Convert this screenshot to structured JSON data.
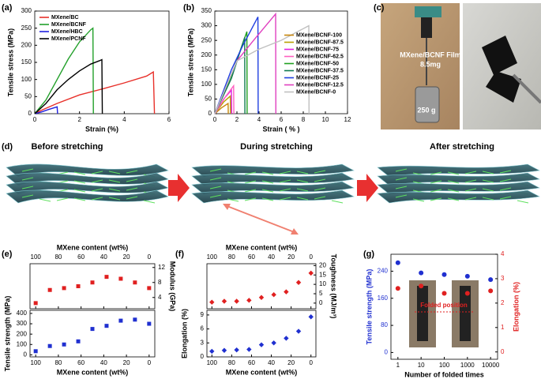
{
  "panel_labels": [
    "(a)",
    "(b)",
    "(c)",
    "(d)",
    "(e)",
    "(f)",
    "(g)"
  ],
  "photo": {
    "film_label": "MXene/BCNF Film",
    "mass": "8.5mg",
    "weight": "250 g"
  },
  "stretching": [
    "Before stretching",
    "During stretching",
    "After stretching"
  ],
  "inset_label": "Folded position",
  "chart_data": [
    {
      "type": "line",
      "xlabel": "Strain (%)",
      "ylabel": "Tensile stress (MPa)",
      "xlim": [
        0,
        6
      ],
      "xticks": [
        0,
        2,
        4,
        6
      ],
      "ylim": [
        0,
        300
      ],
      "yticks": [
        0,
        50,
        100,
        150,
        200,
        250,
        300
      ],
      "legend": "upper left",
      "series": [
        {
          "name": "MXene/BC",
          "color": "#e8302a",
          "x": [
            0,
            0.3,
            1,
            2,
            3,
            4,
            5,
            5.3,
            5.35
          ],
          "values": [
            0,
            10,
            30,
            55,
            72,
            90,
            110,
            122,
            0
          ]
        },
        {
          "name": "MXene/BCNF",
          "color": "#22a02a",
          "x": [
            0,
            0.5,
            1,
            1.5,
            2,
            2.5,
            2.6,
            2.62
          ],
          "values": [
            0,
            40,
            100,
            160,
            210,
            245,
            250,
            0
          ]
        },
        {
          "name": "MXene/HBC",
          "color": "#2020e0",
          "x": [
            0,
            0.3,
            0.6,
            0.9,
            1.0,
            1.02
          ],
          "values": [
            0,
            5,
            12,
            18,
            20,
            0
          ]
        },
        {
          "name": "MXene/PCNF",
          "color": "#000000",
          "x": [
            0,
            0.5,
            1,
            1.5,
            2,
            2.5,
            2.9,
            3.0,
            3.02
          ],
          "values": [
            0,
            30,
            70,
            100,
            125,
            145,
            155,
            158,
            0
          ]
        }
      ]
    },
    {
      "type": "line",
      "xlabel": "Strain ( % )",
      "ylabel": "Tensile stress (MPa)",
      "xlim": [
        0,
        12
      ],
      "xticks": [
        0,
        2,
        4,
        6,
        8,
        10,
        12
      ],
      "ylim": [
        0,
        350
      ],
      "yticks": [
        0,
        50,
        100,
        150,
        200,
        250,
        300,
        350
      ],
      "legend": "center right",
      "series": [
        {
          "name": "MXene/BCNF-100",
          "color": "#c8860a",
          "x": [
            0,
            0.6,
            1.2,
            1.22
          ],
          "values": [
            0,
            20,
            35,
            0
          ]
        },
        {
          "name": "MXene/BCNF-87.5",
          "color": "#b8a000",
          "x": [
            0,
            0.8,
            1.4,
            1.42
          ],
          "values": [
            0,
            40,
            60,
            0
          ]
        },
        {
          "name": "MXene/BCNF-75",
          "color": "#e020e0",
          "x": [
            0,
            0.8,
            1.5,
            1.52
          ],
          "values": [
            0,
            50,
            80,
            0
          ]
        },
        {
          "name": "MXene/BCNF-62.5",
          "color": "#ff60c0",
          "x": [
            0,
            1,
            1.7,
            1.72
          ],
          "values": [
            0,
            60,
            95,
            0
          ]
        },
        {
          "name": "MXene/BCNF-50",
          "color": "#20a020",
          "x": [
            0,
            1.5,
            2.9,
            2.92
          ],
          "values": [
            0,
            130,
            280,
            0
          ]
        },
        {
          "name": "MXene/BCNF-37.5",
          "color": "#107a50",
          "x": [
            0,
            1.5,
            2.7,
            2.72
          ],
          "values": [
            0,
            120,
            260,
            0
          ]
        },
        {
          "name": "MXene/BCNF-25",
          "color": "#2040e0",
          "x": [
            0,
            1.5,
            2.5,
            3.9,
            3.92
          ],
          "values": [
            0,
            150,
            230,
            330,
            0
          ]
        },
        {
          "name": "MXene/BCNF-12.5",
          "color": "#e040c0",
          "x": [
            0,
            2,
            3.5,
            5.5,
            5.52
          ],
          "values": [
            0,
            180,
            250,
            340,
            0
          ]
        },
        {
          "name": "MXene/BCNF-0",
          "color": "#c0c0c0",
          "x": [
            0,
            2,
            4,
            6,
            8.5,
            8.52
          ],
          "values": [
            0,
            180,
            220,
            250,
            300,
            0
          ]
        }
      ]
    },
    {
      "type": "stacked_scatter",
      "xlabel": "MXene content (wt%)",
      "x": [
        100,
        87.5,
        75,
        62.5,
        50,
        37.5,
        25,
        12.5,
        0
      ],
      "xlim": [
        105,
        -5
      ],
      "xticks": [
        100,
        80,
        60,
        40,
        20,
        0
      ],
      "subplots": [
        {
          "ylabel": "Modulus (GPa)",
          "ylim": [
            1,
            13
          ],
          "yticks": [
            4,
            8,
            12
          ],
          "color": "#e02020",
          "marker": "square",
          "values": [
            2.5,
            6,
            6.5,
            7,
            8,
            9.5,
            9,
            8,
            6.5
          ]
        },
        {
          "ylabel": "Tensile strength (MPa)",
          "ylim": [
            -20,
            430
          ],
          "yticks": [
            0,
            100,
            200,
            300,
            400
          ],
          "color": "#2030d0",
          "marker": "square",
          "values": [
            35,
            85,
            100,
            130,
            250,
            280,
            330,
            340,
            300
          ]
        }
      ]
    },
    {
      "type": "stacked_scatter",
      "xlabel": "MXene content (wt%)",
      "x": [
        100,
        87.5,
        75,
        62.5,
        50,
        37.5,
        25,
        12.5,
        0
      ],
      "xlim": [
        105,
        -5
      ],
      "xticks": [
        100,
        80,
        60,
        40,
        20,
        0
      ],
      "subplots": [
        {
          "ylabel": "Toughness (MJ/m³)",
          "ylim": [
            -3,
            21
          ],
          "yticks": [
            0,
            5,
            10,
            15,
            20
          ],
          "color": "#e02020",
          "marker": "diamond",
          "values": [
            0.5,
            1,
            1,
            1.5,
            3,
            4.5,
            6,
            11,
            16
          ]
        },
        {
          "ylabel": "Elongation (%)",
          "ylim": [
            0,
            10
          ],
          "yticks": [
            0,
            3,
            6,
            9
          ],
          "color": "#2030d0",
          "marker": "diamond",
          "values": [
            1.2,
            1.4,
            1.5,
            1.6,
            2.6,
            3,
            4,
            5.5,
            8.6
          ]
        }
      ]
    },
    {
      "type": "dual_scatter",
      "xlabel": "Number of folded times",
      "ylabel": "Tensile strength (MPa)",
      "y2label": "Elongation (%)",
      "x": [
        1,
        10,
        100,
        1000,
        10000
      ],
      "xlim": [
        0.5,
        20000
      ],
      "xticks": [
        1,
        10,
        100,
        1000,
        10000
      ],
      "log_x": true,
      "ylim": [
        -20,
        290
      ],
      "yticks": [
        0,
        80,
        160,
        240
      ],
      "y2lim": [
        -0.3,
        4
      ],
      "y2ticks": [
        0,
        1,
        2,
        3,
        4
      ],
      "series": [
        {
          "color": "#2030d0",
          "axis": "y",
          "values": [
            265,
            235,
            230,
            225,
            215
          ]
        },
        {
          "color": "#e02020",
          "axis": "y2",
          "values": [
            2.6,
            2.7,
            2.4,
            2.4,
            2.5
          ]
        }
      ]
    }
  ]
}
